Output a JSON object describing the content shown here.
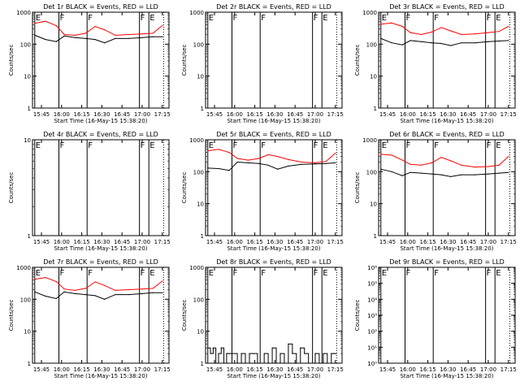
{
  "figure": {
    "title_suffix": "BLACK = Events, RED = LLD",
    "xlabel": "Start Time (16-May-15 15:38:20)",
    "ylabel": "Counts/sec",
    "colors": {
      "events": "#000000",
      "lld": "#ff0000",
      "background": "#ffffff"
    }
  },
  "chart_data": [
    {
      "type": "line",
      "detector": "1r",
      "title": "Det 1r BLACK = Events, RED = LLD",
      "xlabel": "Start Time (16-May-15 15:38:20)",
      "ylabel": "Counts/sec",
      "yscale": "log",
      "ylim": [
        1,
        1000
      ],
      "yticks": [
        1,
        10,
        100,
        1000
      ],
      "ytick_labels": [
        "1",
        "10",
        "100",
        "1000"
      ],
      "xlim": [
        "15:38:20",
        "17:20:00"
      ],
      "xtick_labels": [
        "15:45",
        "16:00",
        "16:15",
        "16:30",
        "16:45",
        "17:00",
        "17:15"
      ],
      "flags": [
        {
          "time": "15:40",
          "label": "E"
        },
        {
          "time": "15:58",
          "label": "F"
        },
        {
          "time": "16:19",
          "label": "F"
        },
        {
          "time": "16:58",
          "label": "F"
        },
        {
          "time": "17:05",
          "label": "E"
        }
      ],
      "series": [
        {
          "name": "LLD",
          "color": "red",
          "x": [
            "15:40",
            "15:48",
            "15:56",
            "16:02",
            "16:10",
            "16:18",
            "16:25",
            "16:32",
            "16:40",
            "16:50",
            "17:00",
            "17:08",
            "17:15"
          ],
          "values": [
            450,
            520,
            380,
            200,
            190,
            220,
            360,
            280,
            190,
            200,
            210,
            220,
            380
          ]
        },
        {
          "name": "Events",
          "color": "black",
          "x": [
            "15:40",
            "15:48",
            "15:56",
            "16:02",
            "16:10",
            "16:18",
            "16:25",
            "16:32",
            "16:40",
            "16:50",
            "17:00",
            "17:08",
            "17:15"
          ],
          "values": [
            190,
            140,
            120,
            180,
            160,
            150,
            140,
            110,
            150,
            150,
            160,
            170,
            170
          ]
        }
      ]
    },
    {
      "type": "line",
      "detector": "2r",
      "title": "Det 2r BLACK = Events, RED = LLD",
      "xlabel": "Start Time (16-May-15 15:38:20)",
      "ylabel": "Counts/sec",
      "yscale": "log",
      "ylim": [
        1,
        1000
      ],
      "yticks": [
        1,
        10,
        100,
        1000
      ],
      "ytick_labels": [
        "1",
        "10",
        "100",
        "1000"
      ],
      "xlim": [
        "15:38:20",
        "17:20:00"
      ],
      "xtick_labels": [
        "15:45",
        "16:00",
        "16:15",
        "16:30",
        "16:45",
        "17:00",
        "17:15"
      ],
      "flags": [
        {
          "time": "15:40",
          "label": "E"
        },
        {
          "time": "15:58",
          "label": "F"
        },
        {
          "time": "16:19",
          "label": "F"
        },
        {
          "time": "16:58",
          "label": "F"
        },
        {
          "time": "17:05",
          "label": "E"
        }
      ],
      "series": []
    },
    {
      "type": "line",
      "detector": "3r",
      "title": "Det 3r BLACK = Events, RED = LLD",
      "xlabel": "Start Time (16-May-15 15:38:20)",
      "ylabel": "Counts/sec",
      "yscale": "log",
      "ylim": [
        1,
        1000
      ],
      "yticks": [
        1,
        10,
        100,
        1000
      ],
      "ytick_labels": [
        "1",
        "10",
        "100",
        "1000"
      ],
      "xlim": [
        "15:38:20",
        "17:20:00"
      ],
      "xtick_labels": [
        "15:45",
        "16:00",
        "16:15",
        "16:30",
        "16:45",
        "17:00",
        "17:15"
      ],
      "flags": [
        {
          "time": "15:40",
          "label": "E"
        },
        {
          "time": "15:58",
          "label": "F"
        },
        {
          "time": "16:19",
          "label": "F"
        },
        {
          "time": "16:58",
          "label": "F"
        },
        {
          "time": "17:05",
          "label": "E"
        }
      ],
      "series": [
        {
          "name": "LLD",
          "color": "red",
          "x": [
            "15:40",
            "15:48",
            "15:56",
            "16:02",
            "16:10",
            "16:18",
            "16:25",
            "16:32",
            "16:40",
            "16:50",
            "17:00",
            "17:08",
            "17:15"
          ],
          "values": [
            420,
            460,
            360,
            230,
            200,
            240,
            330,
            260,
            200,
            210,
            230,
            250,
            360
          ]
        },
        {
          "name": "Events",
          "color": "black",
          "x": [
            "15:40",
            "15:48",
            "15:56",
            "16:02",
            "16:10",
            "16:18",
            "16:25",
            "16:32",
            "16:40",
            "16:50",
            "17:00",
            "17:08",
            "17:15"
          ],
          "values": [
            150,
            110,
            95,
            130,
            120,
            110,
            105,
            90,
            110,
            110,
            120,
            125,
            130
          ]
        }
      ]
    },
    {
      "type": "line",
      "detector": "4r",
      "title": "Det 4r BLACK = Events, RED = LLD",
      "xlabel": "Start Time (16-May-15 15:38:20)",
      "ylabel": "Counts/sec",
      "yscale": "log",
      "ylim": [
        1,
        10
      ],
      "yticks": [
        1,
        10
      ],
      "ytick_labels": [
        "1",
        "10"
      ],
      "xlim": [
        "15:38:20",
        "17:20:00"
      ],
      "xtick_labels": [
        "15:45",
        "16:00",
        "16:15",
        "16:30",
        "16:45",
        "17:00",
        "17:15"
      ],
      "flags": [
        {
          "time": "15:40",
          "label": "E"
        },
        {
          "time": "15:58",
          "label": "F"
        },
        {
          "time": "16:19",
          "label": "F"
        },
        {
          "time": "16:58",
          "label": "F"
        },
        {
          "time": "17:05",
          "label": "E"
        }
      ],
      "series": []
    },
    {
      "type": "line",
      "detector": "5r",
      "title": "Det 5r BLACK = Events, RED = LLD",
      "xlabel": "Start Time (16-May-15 15:38:20)",
      "ylabel": "Counts/sec",
      "yscale": "log",
      "ylim": [
        1,
        1000
      ],
      "yticks": [
        1,
        10,
        100,
        1000
      ],
      "ytick_labels": [
        "1",
        "10",
        "100",
        "1000"
      ],
      "xlim": [
        "15:38:20",
        "17:20:00"
      ],
      "xtick_labels": [
        "15:45",
        "16:00",
        "16:15",
        "16:30",
        "16:45",
        "17:00",
        "17:15"
      ],
      "flags": [
        {
          "time": "15:40",
          "label": "E"
        },
        {
          "time": "15:58",
          "label": "F"
        },
        {
          "time": "16:19",
          "label": "F"
        },
        {
          "time": "16:58",
          "label": "F"
        },
        {
          "time": "17:05",
          "label": "E"
        }
      ],
      "series": [
        {
          "name": "LLD",
          "color": "red",
          "x": [
            "15:40",
            "15:48",
            "15:56",
            "16:02",
            "16:10",
            "16:18",
            "16:25",
            "16:32",
            "16:40",
            "16:50",
            "17:00",
            "17:08",
            "17:15"
          ],
          "values": [
            450,
            500,
            400,
            260,
            230,
            260,
            340,
            300,
            240,
            200,
            190,
            210,
            380
          ]
        },
        {
          "name": "Events",
          "color": "black",
          "x": [
            "15:40",
            "15:48",
            "15:56",
            "16:02",
            "16:10",
            "16:18",
            "16:25",
            "16:32",
            "16:40",
            "16:50",
            "17:00",
            "17:08",
            "17:15"
          ],
          "values": [
            130,
            125,
            110,
            200,
            190,
            180,
            160,
            120,
            150,
            170,
            175,
            180,
            190
          ]
        }
      ]
    },
    {
      "type": "line",
      "detector": "6r",
      "title": "Det 6r BLACK = Events, RED = LLD",
      "xlabel": "Start Time (16-May-15 15:38:20)",
      "ylabel": "Counts/sec",
      "yscale": "log",
      "ylim": [
        1,
        1000
      ],
      "yticks": [
        1,
        10,
        100,
        1000
      ],
      "ytick_labels": [
        "1",
        "10",
        "100",
        "1000"
      ],
      "xlim": [
        "15:38:20",
        "17:20:00"
      ],
      "xtick_labels": [
        "15:45",
        "16:00",
        "16:15",
        "16:30",
        "16:45",
        "17:00",
        "17:15"
      ],
      "flags": [
        {
          "time": "15:40",
          "label": "E"
        },
        {
          "time": "15:58",
          "label": "F"
        },
        {
          "time": "16:19",
          "label": "F"
        },
        {
          "time": "16:58",
          "label": "F"
        },
        {
          "time": "17:05",
          "label": "E"
        }
      ],
      "series": [
        {
          "name": "LLD",
          "color": "red",
          "x": [
            "15:40",
            "15:48",
            "15:56",
            "16:02",
            "16:10",
            "16:18",
            "16:25",
            "16:32",
            "16:40",
            "16:50",
            "17:00",
            "17:08",
            "17:15"
          ],
          "values": [
            350,
            330,
            230,
            170,
            160,
            190,
            280,
            220,
            160,
            140,
            145,
            160,
            300
          ]
        },
        {
          "name": "Events",
          "color": "black",
          "x": [
            "15:40",
            "15:48",
            "15:56",
            "16:02",
            "16:10",
            "16:18",
            "16:25",
            "16:32",
            "16:40",
            "16:50",
            "17:00",
            "17:08",
            "17:15"
          ],
          "values": [
            120,
            100,
            75,
            95,
            90,
            85,
            80,
            70,
            80,
            80,
            85,
            90,
            95
          ]
        }
      ]
    },
    {
      "type": "line",
      "detector": "7r",
      "title": "Det 7r BLACK = Events, RED = LLD",
      "xlabel": "Start Time (16-May-15 15:38:20)",
      "ylabel": "Counts/sec",
      "yscale": "log",
      "ylim": [
        1,
        1000
      ],
      "yticks": [
        1,
        10,
        100,
        1000
      ],
      "ytick_labels": [
        "1",
        "10",
        "100",
        "1000"
      ],
      "xlim": [
        "15:38:20",
        "17:20:00"
      ],
      "xtick_labels": [
        "15:45",
        "16:00",
        "16:15",
        "16:30",
        "16:45",
        "17:00",
        "17:15"
      ],
      "flags": [
        {
          "time": "15:40",
          "label": "E"
        },
        {
          "time": "15:58",
          "label": "F"
        },
        {
          "time": "16:19",
          "label": "F"
        },
        {
          "time": "16:58",
          "label": "F"
        },
        {
          "time": "17:05",
          "label": "E"
        }
      ],
      "series": [
        {
          "name": "LLD",
          "color": "red",
          "x": [
            "15:40",
            "15:48",
            "15:56",
            "16:02",
            "16:10",
            "16:18",
            "16:25",
            "16:32",
            "16:40",
            "16:50",
            "17:00",
            "17:08",
            "17:15"
          ],
          "values": [
            420,
            480,
            360,
            210,
            190,
            220,
            350,
            270,
            190,
            200,
            210,
            220,
            370
          ]
        },
        {
          "name": "Events",
          "color": "black",
          "x": [
            "15:40",
            "15:48",
            "15:56",
            "16:02",
            "16:10",
            "16:18",
            "16:25",
            "16:32",
            "16:40",
            "16:50",
            "17:00",
            "17:08",
            "17:15"
          ],
          "values": [
            170,
            125,
            105,
            170,
            150,
            140,
            130,
            100,
            140,
            140,
            150,
            160,
            160
          ]
        }
      ]
    },
    {
      "type": "line",
      "detector": "8r",
      "title": "Det 8r BLACK = Events, RED = LLD",
      "xlabel": "Start Time (16-May-15 15:38:20)",
      "ylabel": "Counts/sec",
      "yscale": "log",
      "ylim": [
        1,
        1000
      ],
      "yticks": [
        1,
        10,
        100,
        1000
      ],
      "ytick_labels": [
        "1",
        "10",
        "100",
        "1000"
      ],
      "xlim": [
        "15:38:20",
        "17:20:00"
      ],
      "xtick_labels": [
        "15:45",
        "16:00",
        "16:15",
        "16:30",
        "16:45",
        "17:00",
        "17:15"
      ],
      "flags": [
        {
          "time": "15:40",
          "label": "E"
        },
        {
          "time": "15:58",
          "label": "F"
        },
        {
          "time": "16:19",
          "label": "F"
        },
        {
          "time": "16:58",
          "label": "F"
        },
        {
          "time": "17:05",
          "label": "E"
        }
      ],
      "series": [
        {
          "name": "Events",
          "color": "black",
          "x": [
            "15:40",
            "15:42",
            "15:44",
            "15:46",
            "15:48",
            "15:50",
            "15:52",
            "15:54",
            "15:56",
            "16:02",
            "16:05",
            "16:08",
            "16:11",
            "16:14",
            "16:17",
            "16:22",
            "16:25",
            "16:28",
            "16:31",
            "16:34",
            "16:37",
            "16:40",
            "16:43",
            "16:46",
            "16:49",
            "16:52",
            "16:55",
            "17:00",
            "17:03",
            "17:06",
            "17:09",
            "17:12",
            "17:14"
          ],
          "values": [
            3,
            2,
            3,
            1,
            2,
            3,
            1,
            2,
            2,
            1,
            2,
            1,
            2,
            2,
            1,
            2,
            1,
            3,
            1,
            2,
            1,
            4,
            2,
            1,
            3,
            2,
            1,
            2,
            1,
            2,
            1,
            2,
            2
          ]
        }
      ]
    },
    {
      "type": "line",
      "detector": "9r",
      "title": "Det 9r BLACK = Events, RED = LLD",
      "xlabel": "Start Time (16-May-15 15:38:20)",
      "ylabel": "Counts/sec",
      "yscale": "log",
      "ylim": [
        1,
        1000000
      ],
      "yticks": [
        1,
        10,
        100,
        1000,
        10000,
        100000,
        1000000
      ],
      "ytick_labels": [
        "10⁰",
        "10¹",
        "10²",
        "10³",
        "10⁴",
        "10⁵",
        "10⁶"
      ],
      "xlim": [
        "15:38:20",
        "17:20:00"
      ],
      "xtick_labels": [
        "15:45",
        "16:00",
        "16:15",
        "16:30",
        "16:45",
        "17:00",
        "17:15"
      ],
      "flags": [
        {
          "time": "15:40",
          "label": "E"
        },
        {
          "time": "15:58",
          "label": "F"
        },
        {
          "time": "16:19",
          "label": "F"
        },
        {
          "time": "16:58",
          "label": "F"
        },
        {
          "time": "17:05",
          "label": "E"
        }
      ],
      "series": []
    }
  ]
}
